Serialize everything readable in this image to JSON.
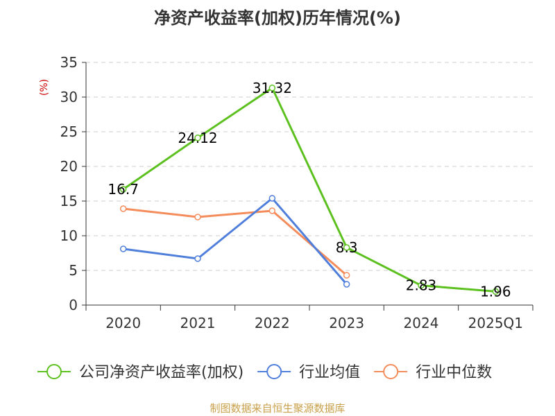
{
  "chart_data": {
    "type": "line",
    "title": "净资产收益率(加权)历年情况(%)",
    "unit_label": "(%)",
    "categories": [
      "2020",
      "2021",
      "2022",
      "2023",
      "2024",
      "2025Q1"
    ],
    "ylim": [
      0,
      35
    ],
    "yticks": [
      0,
      5,
      10,
      15,
      20,
      25,
      30,
      35
    ],
    "grid": true,
    "legend_position": "bottom",
    "series": [
      {
        "name": "公司净资产收益率(加权)",
        "color": "#5cc11f",
        "values": [
          16.7,
          24.12,
          31.32,
          8.3,
          2.83,
          1.96
        ],
        "labels": [
          "16.7",
          "24.12",
          "31.32",
          "8.3",
          "2.83",
          "1.96"
        ]
      },
      {
        "name": "行业均值",
        "color": "#4f7fdb",
        "values": [
          8.1,
          6.7,
          15.4,
          3.0,
          null,
          null
        ]
      },
      {
        "name": "行业中位数",
        "color": "#f48c5c",
        "values": [
          13.9,
          12.7,
          13.6,
          4.3,
          null,
          null
        ]
      }
    ],
    "source": "制图数据来自恒生聚源数据库"
  },
  "colors": {
    "unit_label": "#cc0000",
    "source": "#c8a04a",
    "axis": "#333333",
    "grid": "#cccccc"
  }
}
